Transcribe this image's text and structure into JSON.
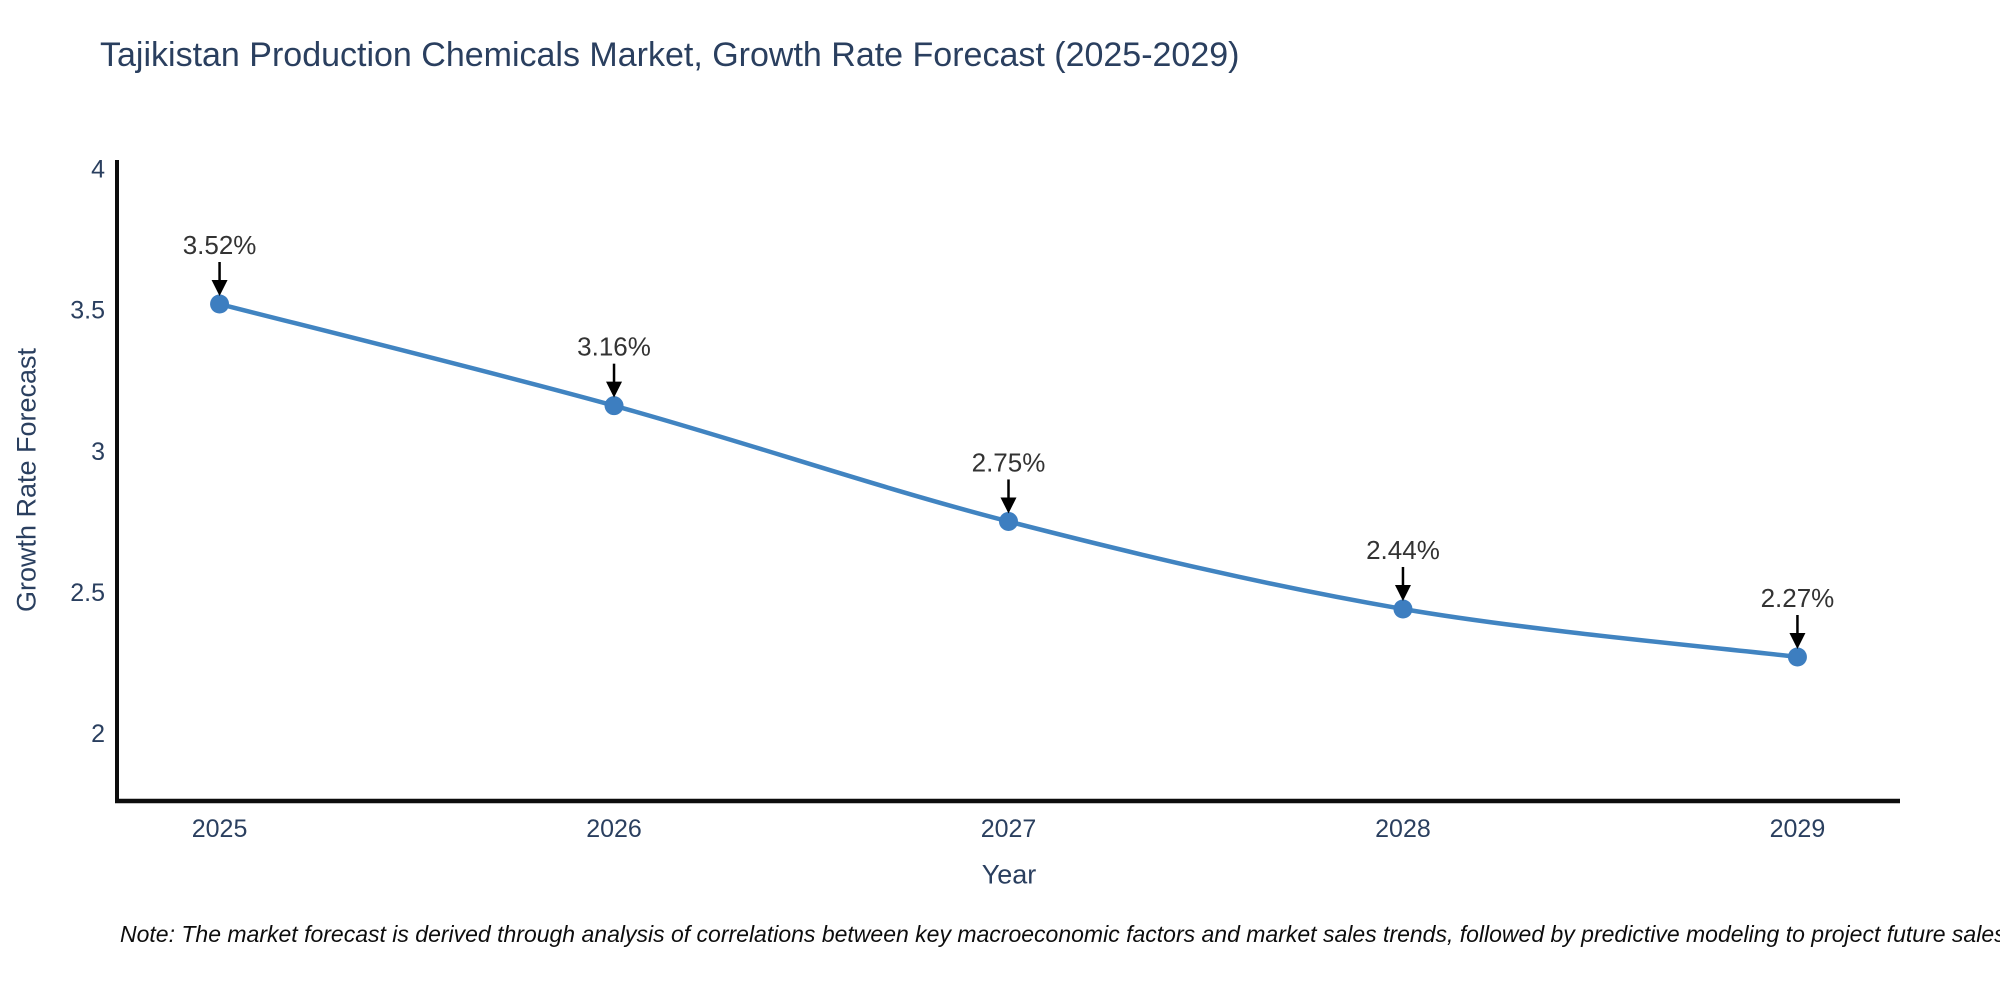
{
  "title": "Tajikistan Production Chemicals Market, Growth Rate Forecast (2025-2029)",
  "note": "Note: The market forecast is derived through analysis of correlations between key macroeconomic factors and market sales trends, followed by predictive modeling to project future sales",
  "colors": {
    "background": "#ffffff",
    "heading": "#2a3f5f",
    "tick": "#2a3f5f",
    "axis_line": "#0d0d0d",
    "line": "#4184c1",
    "marker": "#3d7ec0",
    "annotation_text": "#333333",
    "annotation_arrow": "#000000"
  },
  "chart_data": {
    "type": "line",
    "title": "Tajikistan Production Chemicals Market, Growth Rate Forecast (2025-2029)",
    "xlabel": "Year",
    "ylabel": "Growth Rate Forecast",
    "x": [
      2025,
      2026,
      2027,
      2028,
      2029
    ],
    "values": [
      3.52,
      3.16,
      2.75,
      2.44,
      2.27
    ],
    "point_labels": [
      "3.52%",
      "3.16%",
      "2.75%",
      "2.44%",
      "2.27%"
    ],
    "xticks": [
      2025,
      2026,
      2027,
      2028,
      2029
    ],
    "yticks": [
      2,
      2.5,
      3,
      3.5,
      4
    ],
    "xlim": [
      2024.74,
      2029.26
    ],
    "ylim": [
      1.76,
      4.03
    ],
    "grid": false,
    "legend": "none",
    "line_shape": "spline"
  }
}
